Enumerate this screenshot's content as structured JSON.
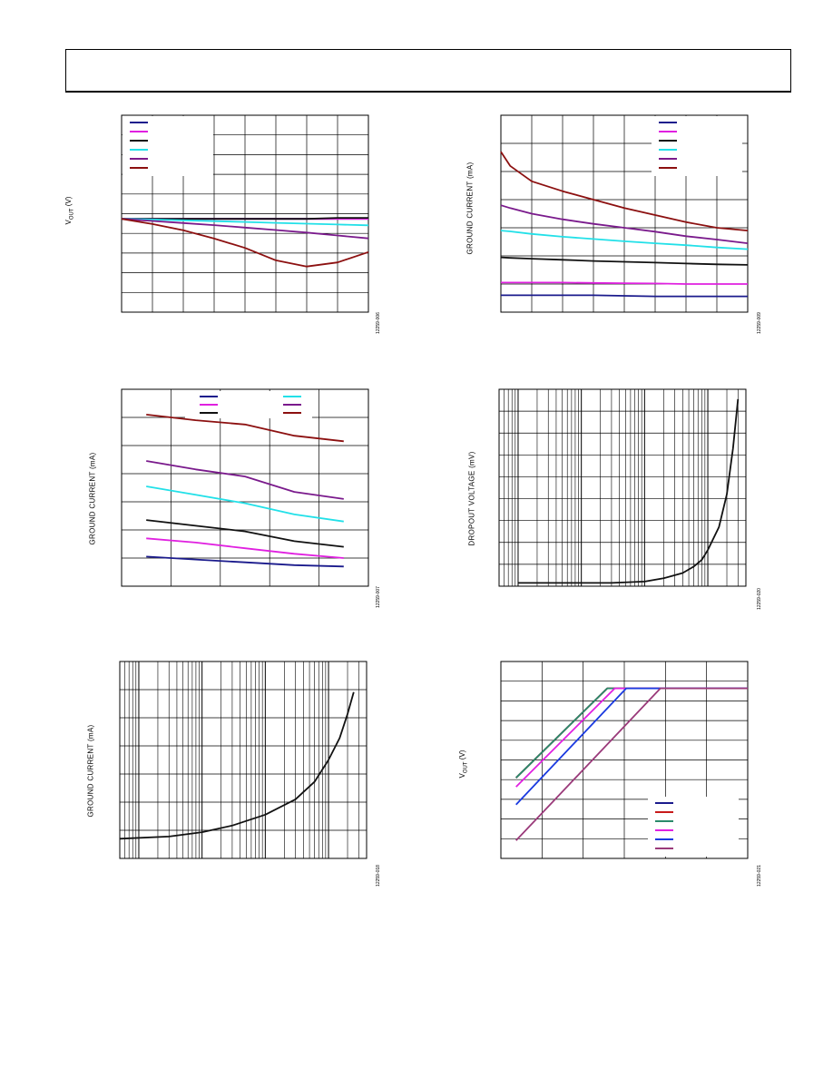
{
  "page": {
    "header_title": ""
  },
  "figures": [
    {
      "id": "fig-vout",
      "ylabel_main": "V",
      "ylabel_sub": "OUT",
      "ylabel_unit": " (V)",
      "code": "12259-006",
      "chart_data": {
        "type": "line",
        "x": [
          0,
          1,
          2,
          3,
          4,
          5,
          6,
          7,
          8
        ],
        "series": [
          {
            "color": "#1a1a8c",
            "values": [
              0.0,
              0.0,
              0.0,
              0.0,
              0.0,
              0.0,
              0.0,
              0.0,
              0.0
            ]
          },
          {
            "color": "#e020e0",
            "values": [
              0.0,
              0.0,
              0.0,
              0.0,
              0.0,
              0.0,
              0.0,
              0.0,
              0.0
            ]
          },
          {
            "color": "#111111",
            "values": [
              0.0,
              0.0,
              0.0,
              0.0,
              0.0,
              0.0,
              0.0,
              0.05,
              0.05
            ]
          },
          {
            "color": "#22e0e8",
            "values": [
              0.0,
              -0.03,
              -0.07,
              -0.11,
              -0.15,
              -0.19,
              -0.23,
              -0.27,
              -0.31
            ]
          },
          {
            "color": "#7a1a8c",
            "values": [
              0.0,
              -0.1,
              -0.2,
              -0.3,
              -0.42,
              -0.54,
              -0.66,
              -0.8,
              -0.94
            ]
          },
          {
            "color": "#8c1010",
            "values": [
              0.0,
              -0.25,
              -0.55,
              -0.95,
              -1.4,
              -2.0,
              -2.3,
              -2.1,
              -1.6
            ]
          }
        ],
        "ylim": [
          -4.5,
          5.0
        ],
        "xlim": [
          0,
          8
        ],
        "legend_position": "top-left",
        "grid": true
      }
    },
    {
      "id": "fig-gnd1",
      "ylabel": "GROUND CURRENT (mA)",
      "code": "12259-009",
      "chart_data": {
        "type": "line",
        "x": [
          0,
          0.3,
          1,
          2,
          3,
          4,
          5,
          6,
          7,
          8
        ],
        "series": [
          {
            "color": "#1a1a8c",
            "values": [
              0.6,
              0.6,
              0.6,
              0.6,
              0.6,
              0.58,
              0.56,
              0.56,
              0.56,
              0.56
            ]
          },
          {
            "color": "#e020e0",
            "values": [
              1.05,
              1.05,
              1.05,
              1.05,
              1.04,
              1.03,
              1.02,
              1.0,
              1.0,
              1.0
            ]
          },
          {
            "color": "#111111",
            "values": [
              1.95,
              1.93,
              1.9,
              1.86,
              1.82,
              1.79,
              1.76,
              1.73,
              1.7,
              1.68
            ]
          },
          {
            "color": "#22e0e8",
            "values": [
              2.9,
              2.87,
              2.78,
              2.68,
              2.6,
              2.52,
              2.45,
              2.38,
              2.3,
              2.24
            ]
          },
          {
            "color": "#7a1a8c",
            "values": [
              3.8,
              3.7,
              3.5,
              3.3,
              3.14,
              3.0,
              2.86,
              2.7,
              2.58,
              2.45
            ]
          },
          {
            "color": "#8c1010",
            "values": [
              5.7,
              5.2,
              4.65,
              4.3,
              4.0,
              3.7,
              3.45,
              3.2,
              3.0,
              2.9
            ]
          }
        ],
        "ylim": [
          0,
          7
        ],
        "xlim": [
          0,
          8
        ],
        "legend_position": "top-right",
        "grid": true
      }
    },
    {
      "id": "fig-gnd2",
      "ylabel": "GROUND CURRENT (mA)",
      "code": "12259-007",
      "chart_data": {
        "type": "line",
        "x": [
          0,
          1,
          2,
          3,
          4
        ],
        "series": [
          {
            "color": "#1a1a8c",
            "values": [
              1.05,
              0.95,
              0.85,
              0.75,
              0.7
            ]
          },
          {
            "color": "#e020e0",
            "values": [
              1.7,
              1.55,
              1.35,
              1.15,
              1.0
            ]
          },
          {
            "color": "#111111",
            "values": [
              2.35,
              2.15,
              1.95,
              1.6,
              1.4
            ]
          },
          {
            "color": "#22e0e8",
            "values": [
              3.55,
              3.25,
              2.95,
              2.55,
              2.3
            ]
          },
          {
            "color": "#7a1a8c",
            "values": [
              4.45,
              4.15,
              3.9,
              3.35,
              3.1
            ]
          },
          {
            "color": "#8c1010",
            "values": [
              6.1,
              5.9,
              5.75,
              5.35,
              5.15
            ]
          }
        ],
        "ylim": [
          0,
          7
        ],
        "xlim": [
          -0.5,
          4.5
        ],
        "legend_position": "top-center",
        "grid": true
      }
    },
    {
      "id": "fig-dropout",
      "ylabel": "DROPOUT VOLTAGE (mV)",
      "code": "12259-020",
      "chart_data": {
        "type": "line",
        "x_scale": "log",
        "x": [
          0.1,
          0.3,
          1,
          3,
          10,
          20,
          40,
          60,
          80,
          100,
          150,
          200,
          250,
          300
        ],
        "series": [
          {
            "color": "#111111",
            "values": [
              5,
              5,
              5,
              5,
              7,
              12,
              20,
              30,
              40,
              55,
              90,
              140,
              210,
              285
            ]
          }
        ],
        "ylim": [
          0,
          300
        ],
        "xlim": [
          0.05,
          400
        ],
        "grid": true
      }
    },
    {
      "id": "fig-gnd3",
      "ylabel": "GROUND CURRENT (mA)",
      "code": "12259-018",
      "chart_data": {
        "type": "line",
        "x_scale": "log",
        "x": [
          0.05,
          0.3,
          1,
          3,
          10,
          30,
          60,
          100,
          150,
          200,
          250
        ],
        "series": [
          {
            "color": "#111111",
            "values": [
              0.9,
              1.0,
              1.2,
              1.5,
              2.0,
              2.7,
              3.5,
              4.5,
              5.5,
              6.6,
              7.6
            ]
          }
        ],
        "ylim": [
          0,
          9
        ],
        "xlim": [
          0.05,
          400
        ],
        "grid": true
      }
    },
    {
      "id": "fig-vout2",
      "ylabel_main": "V",
      "ylabel_sub": "OUT",
      "ylabel_unit": " (V)",
      "code": "12259-021",
      "chart_data": {
        "type": "line",
        "series": [
          {
            "color": "#1a1a8c",
            "points": [
              [
                0.4,
                4.0
              ],
              [
                2.8,
                9.0
              ],
              [
                6.5,
                9.0
              ]
            ]
          },
          {
            "color": "#c81a1a",
            "points": [
              [
                0.4,
                4.0
              ],
              [
                2.8,
                9.0
              ],
              [
                6.5,
                9.0
              ]
            ]
          },
          {
            "color": "#2a8a6a",
            "points": [
              [
                0.4,
                4.0
              ],
              [
                2.8,
                9.0
              ],
              [
                6.5,
                9.0
              ]
            ]
          },
          {
            "color": "#e020e0",
            "points": [
              [
                0.4,
                3.5
              ],
              [
                3.0,
                9.0
              ],
              [
                6.5,
                9.0
              ]
            ]
          },
          {
            "color": "#1a3ae0",
            "points": [
              [
                0.4,
                2.5
              ],
              [
                3.3,
                9.0
              ],
              [
                6.5,
                9.0
              ]
            ]
          },
          {
            "color": "#9a3a7a",
            "points": [
              [
                0.4,
                0.5
              ],
              [
                4.2,
                9.0
              ],
              [
                6.5,
                9.0
              ]
            ]
          }
        ],
        "ylim": [
          -0.5,
          10.5
        ],
        "xlim": [
          0,
          6.5
        ],
        "legend_position": "bottom-right",
        "grid": true
      }
    }
  ]
}
